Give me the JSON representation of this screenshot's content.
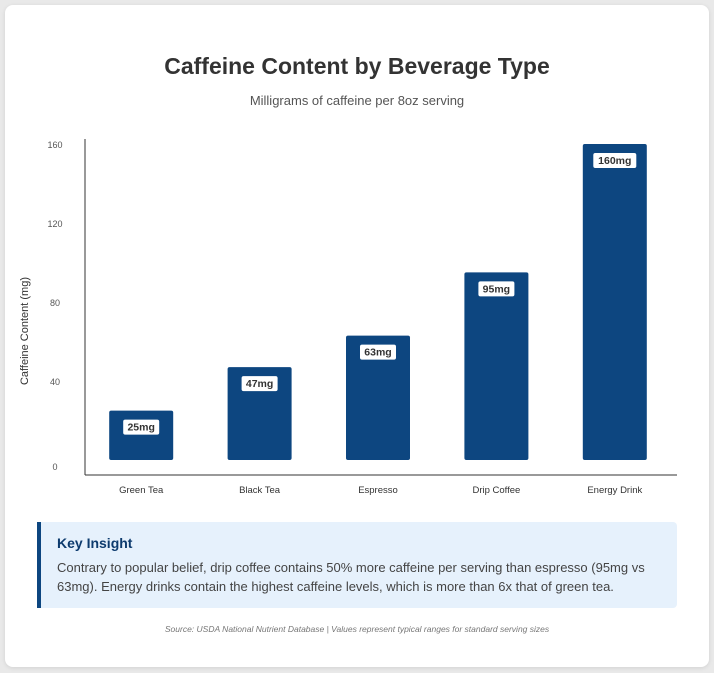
{
  "header": {
    "title": "Caffeine Content by Beverage Type",
    "subtitle": "Milligrams of caffeine per 8oz serving"
  },
  "chart_data": {
    "type": "bar",
    "title": "Caffeine Content by Beverage Type",
    "subtitle": "Milligrams of caffeine per 8oz serving",
    "xlabel": "",
    "ylabel": "Caffeine Content (mg)",
    "categories": [
      "Green Tea",
      "Black Tea",
      "Espresso",
      "Drip Coffee",
      "Energy Drink"
    ],
    "values": [
      25,
      47,
      63,
      95,
      160
    ],
    "data_labels": [
      "25mg",
      "47mg",
      "63mg",
      "95mg",
      "160mg"
    ],
    "yticks": [
      0,
      40,
      80,
      120,
      160
    ],
    "ylim": [
      0,
      160
    ],
    "grid": false,
    "bar_color": "#0d4680"
  },
  "insight": {
    "title": "Key Insight",
    "text": "Contrary to popular belief, drip coffee contains 50% more caffeine per serving than espresso (95mg vs 63mg). Energy drinks contain the highest caffeine levels, which is more than 6x that of green tea."
  },
  "footer": {
    "source": "Source: USDA National Nutrient Database | Values represent typical ranges for standard serving sizes"
  }
}
